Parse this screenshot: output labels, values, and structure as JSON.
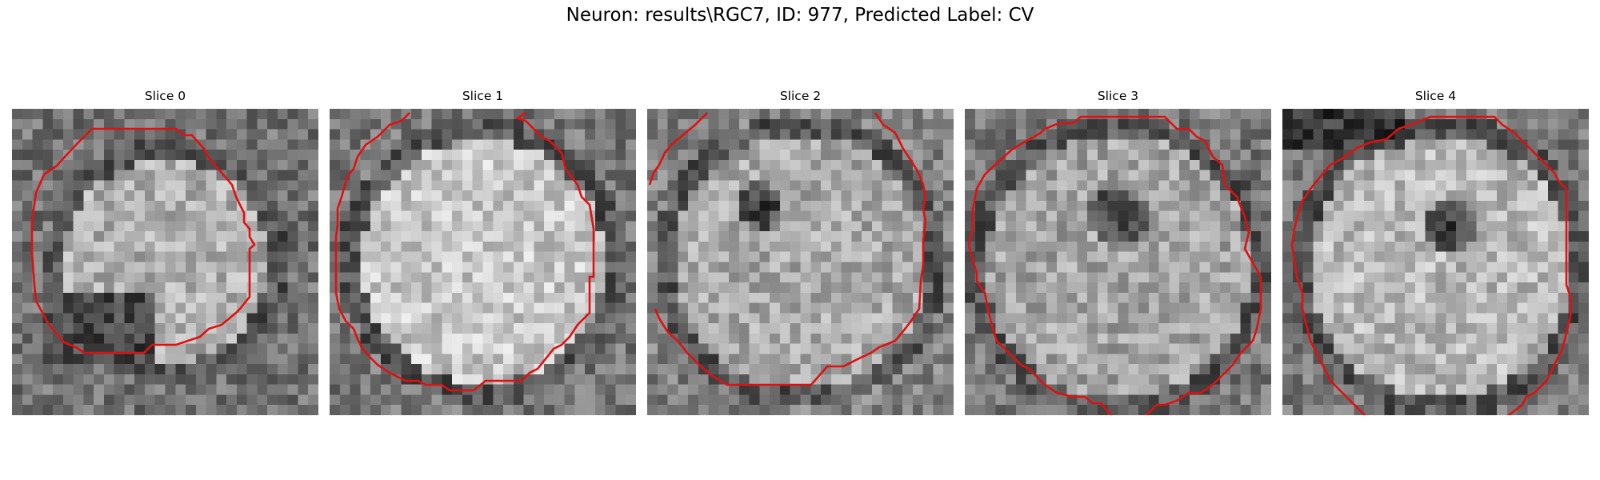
{
  "figure": {
    "title": "Neuron: results\\RGC7, ID: 977, Predicted Label: CV"
  },
  "panels": [
    {
      "title": "Slice 0"
    },
    {
      "title": "Slice 1"
    },
    {
      "title": "Slice 2"
    },
    {
      "title": "Slice 3"
    },
    {
      "title": "Slice 4"
    }
  ],
  "colors": {
    "contour": "#e01010",
    "background": "#ffffff"
  }
}
